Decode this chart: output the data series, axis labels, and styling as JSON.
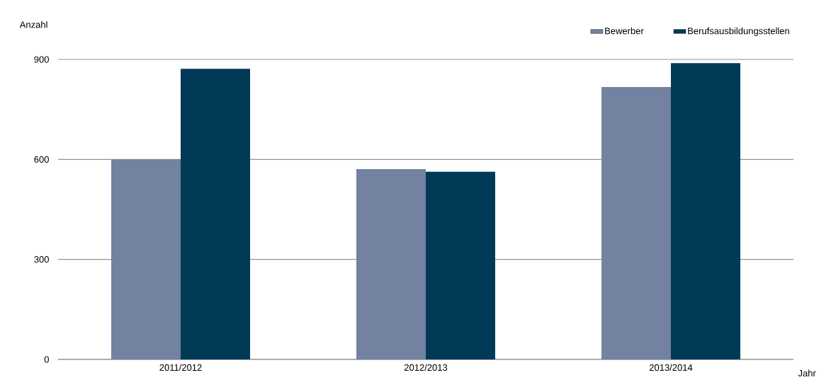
{
  "chart_data": {
    "type": "bar",
    "xlabel": "Jahr",
    "ylabel": "Anzahl",
    "categories": [
      "2011/2012",
      "2012/2013",
      "2013/2014"
    ],
    "series": [
      {
        "name": "Bewerber",
        "color": "#7282a0",
        "values": [
          600,
          571,
          817
        ]
      },
      {
        "name": "Berufsausbildungsstellen",
        "color": "#003a56",
        "values": [
          872,
          563,
          889
        ]
      }
    ],
    "ylim": [
      0,
      900
    ],
    "yticks": [
      0,
      300,
      600,
      900
    ],
    "grid": "y",
    "legend": "top right"
  }
}
